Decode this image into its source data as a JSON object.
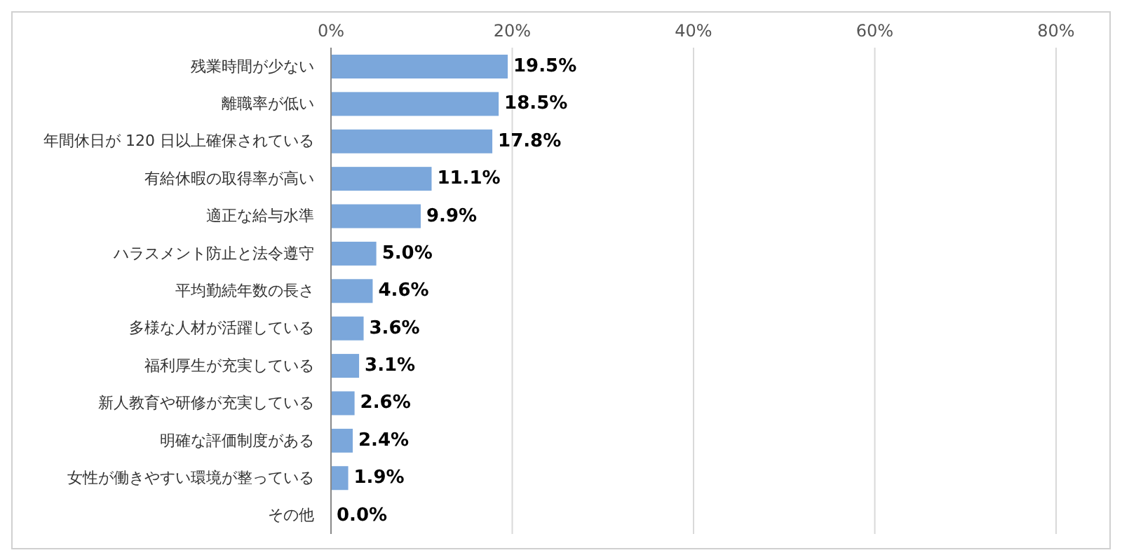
{
  "chart_data": {
    "type": "bar",
    "orientation": "horizontal",
    "categories": [
      "残業時間が少ない",
      "離職率が低い",
      "年間休日が 120 日以上確保されている",
      "有給休暇の取得率が高い",
      "適正な給与水準",
      "ハラスメント防止と法令遵守",
      "平均勤続年数の長さ",
      "多様な人材が活躍している",
      "福利厚生が充実している",
      "新人教育や研修が充実している",
      "明確な評価制度がある",
      "女性が働きやすい環境が整っている",
      "その他"
    ],
    "values": [
      19.5,
      18.5,
      17.8,
      11.1,
      9.9,
      5.0,
      4.6,
      3.6,
      3.1,
      2.6,
      2.4,
      1.9,
      0.0
    ],
    "value_labels": [
      "19.5%",
      "18.5%",
      "17.8%",
      "11.1%",
      "9.9%",
      "5.0%",
      "4.6%",
      "3.6%",
      "3.1%",
      "2.6%",
      "2.4%",
      "1.9%",
      "0.0%"
    ],
    "color": "#7ba7db",
    "xlim": [
      0,
      80
    ],
    "xticks": [
      {
        "value": 0,
        "label": "0%"
      },
      {
        "value": 20,
        "label": "20%"
      },
      {
        "value": 40,
        "label": "40%"
      },
      {
        "value": 60,
        "label": "60%"
      },
      {
        "value": 80,
        "label": "80%"
      }
    ],
    "grid": "x"
  }
}
